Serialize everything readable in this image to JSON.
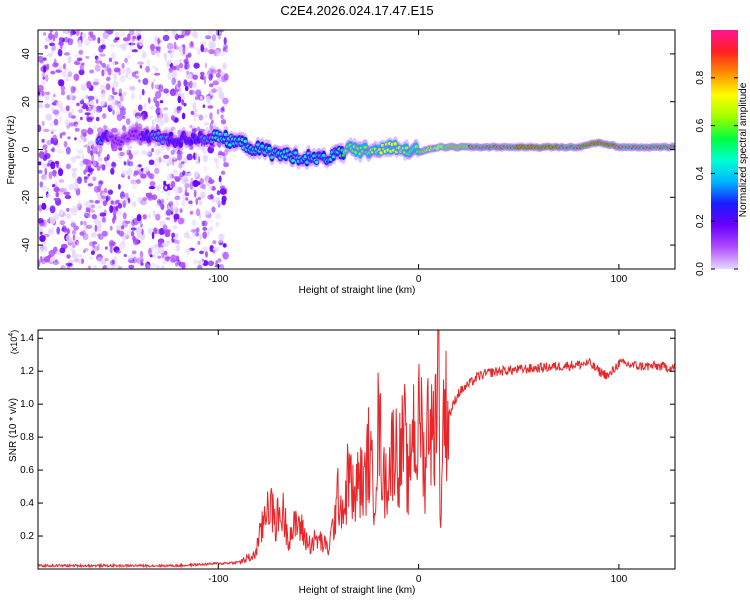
{
  "title": "C2E4.2026.024.17.47.E15",
  "chart_data": [
    {
      "type": "heatmap",
      "xlabel": "Height of straight line (km)",
      "ylabel": "Frequency (Hz)",
      "xlim": [
        -190,
        128
      ],
      "ylim": [
        -50,
        50
      ],
      "xticks": [
        -100,
        0,
        100
      ],
      "yticks": [
        -40,
        -20,
        0,
        20,
        40
      ],
      "colorbar": {
        "label": "Normalized spectral amplitude",
        "range": [
          0,
          1
        ],
        "ticks": [
          0.0,
          0.2,
          0.4,
          0.6,
          0.8
        ],
        "colors": [
          "#e6d8ff",
          "#b04dff",
          "#6a00ff",
          "#1a1aff",
          "#00b4ff",
          "#00ffd2",
          "#00ff40",
          "#a0ff00",
          "#ffff00",
          "#ff9000",
          "#ff2020",
          "#ff1493"
        ]
      },
      "noise_region": {
        "x_from": -190,
        "x_to": -96,
        "amplitude_range": [
          0.0,
          0.2
        ]
      },
      "ridge": [
        {
          "x": -160,
          "freq": 5,
          "amp": 0.35
        },
        {
          "x": -150,
          "freq": 4,
          "amp": 0.15
        },
        {
          "x": -140,
          "freq": 6,
          "amp": 0.2
        },
        {
          "x": -130,
          "freq": 5,
          "amp": 0.4
        },
        {
          "x": -120,
          "freq": 4,
          "amp": 0.25
        },
        {
          "x": -110,
          "freq": 5,
          "amp": 0.3
        },
        {
          "x": -100,
          "freq": 5,
          "amp": 0.45
        },
        {
          "x": -90,
          "freq": 3,
          "amp": 0.45
        },
        {
          "x": -80,
          "freq": 0,
          "amp": 0.5
        },
        {
          "x": -70,
          "freq": -2,
          "amp": 0.45
        },
        {
          "x": -60,
          "freq": -3,
          "amp": 0.5
        },
        {
          "x": -50,
          "freq": -4,
          "amp": 0.45
        },
        {
          "x": -40,
          "freq": -2,
          "amp": 0.5
        },
        {
          "x": -35,
          "freq": 0,
          "amp": 0.65
        },
        {
          "x": -30,
          "freq": -1,
          "amp": 0.65
        },
        {
          "x": -20,
          "freq": 0,
          "amp": 0.7
        },
        {
          "x": -10,
          "freq": 1,
          "amp": 0.7
        },
        {
          "x": 0,
          "freq": -1,
          "amp": 0.65
        },
        {
          "x": 10,
          "freq": 1,
          "amp": 0.75
        },
        {
          "x": 20,
          "freq": 1,
          "amp": 0.85
        },
        {
          "x": 40,
          "freq": 1,
          "amp": 0.9
        },
        {
          "x": 60,
          "freq": 1,
          "amp": 0.92
        },
        {
          "x": 80,
          "freq": 1,
          "amp": 0.9
        },
        {
          "x": 90,
          "freq": 3,
          "amp": 0.95
        },
        {
          "x": 100,
          "freq": 1,
          "amp": 0.9
        },
        {
          "x": 115,
          "freq": 1,
          "amp": 0.88
        },
        {
          "x": 128,
          "freq": 1,
          "amp": 0.9
        }
      ]
    },
    {
      "type": "line",
      "xlabel": "Height of straight line (km)",
      "ylabel": "SNR (10 * v/v)",
      "y_exponent_label": "(x10",
      "y_exponent": "4",
      "y_exponent_close": ")",
      "xlim": [
        -190,
        128
      ],
      "ylim": [
        0,
        1.45
      ],
      "xticks": [
        -100,
        0,
        100
      ],
      "yticks": [
        0.2,
        0.4,
        0.6,
        0.8,
        1.0,
        1.2,
        1.4
      ],
      "color": "#e8262a",
      "series": [
        {
          "name": "SNR",
          "x": [
            -190,
            -120,
            -90,
            -82,
            -78,
            -75,
            -72,
            -68,
            -65,
            -60,
            -55,
            -50,
            -45,
            -42,
            -40,
            -37,
            -35,
            -32,
            -30,
            -27,
            -25,
            -22,
            -20,
            -17,
            -15,
            -12,
            -10,
            -7,
            -5,
            -3,
            -1,
            1,
            3,
            5,
            7,
            8,
            9,
            10,
            11,
            12,
            14,
            16,
            18,
            20,
            25,
            30,
            35,
            40,
            50,
            60,
            70,
            80,
            85,
            90,
            95,
            100,
            110,
            120,
            128
          ],
          "y": [
            0.02,
            0.02,
            0.04,
            0.08,
            0.25,
            0.45,
            0.28,
            0.35,
            0.2,
            0.28,
            0.15,
            0.18,
            0.12,
            0.3,
            0.45,
            0.35,
            0.6,
            0.4,
            0.55,
            0.5,
            0.7,
            0.45,
            0.9,
            0.5,
            0.6,
            0.78,
            0.65,
            0.8,
            0.45,
            0.95,
            0.7,
            1.0,
            0.55,
            1.02,
            0.75,
            0.9,
            1.08,
            1.45,
            0.18,
            0.95,
            0.95,
            0.95,
            1.02,
            1.07,
            1.12,
            1.17,
            1.19,
            1.2,
            1.21,
            1.22,
            1.23,
            1.24,
            1.25,
            1.2,
            1.17,
            1.25,
            1.23,
            1.23,
            1.22
          ]
        }
      ]
    }
  ]
}
